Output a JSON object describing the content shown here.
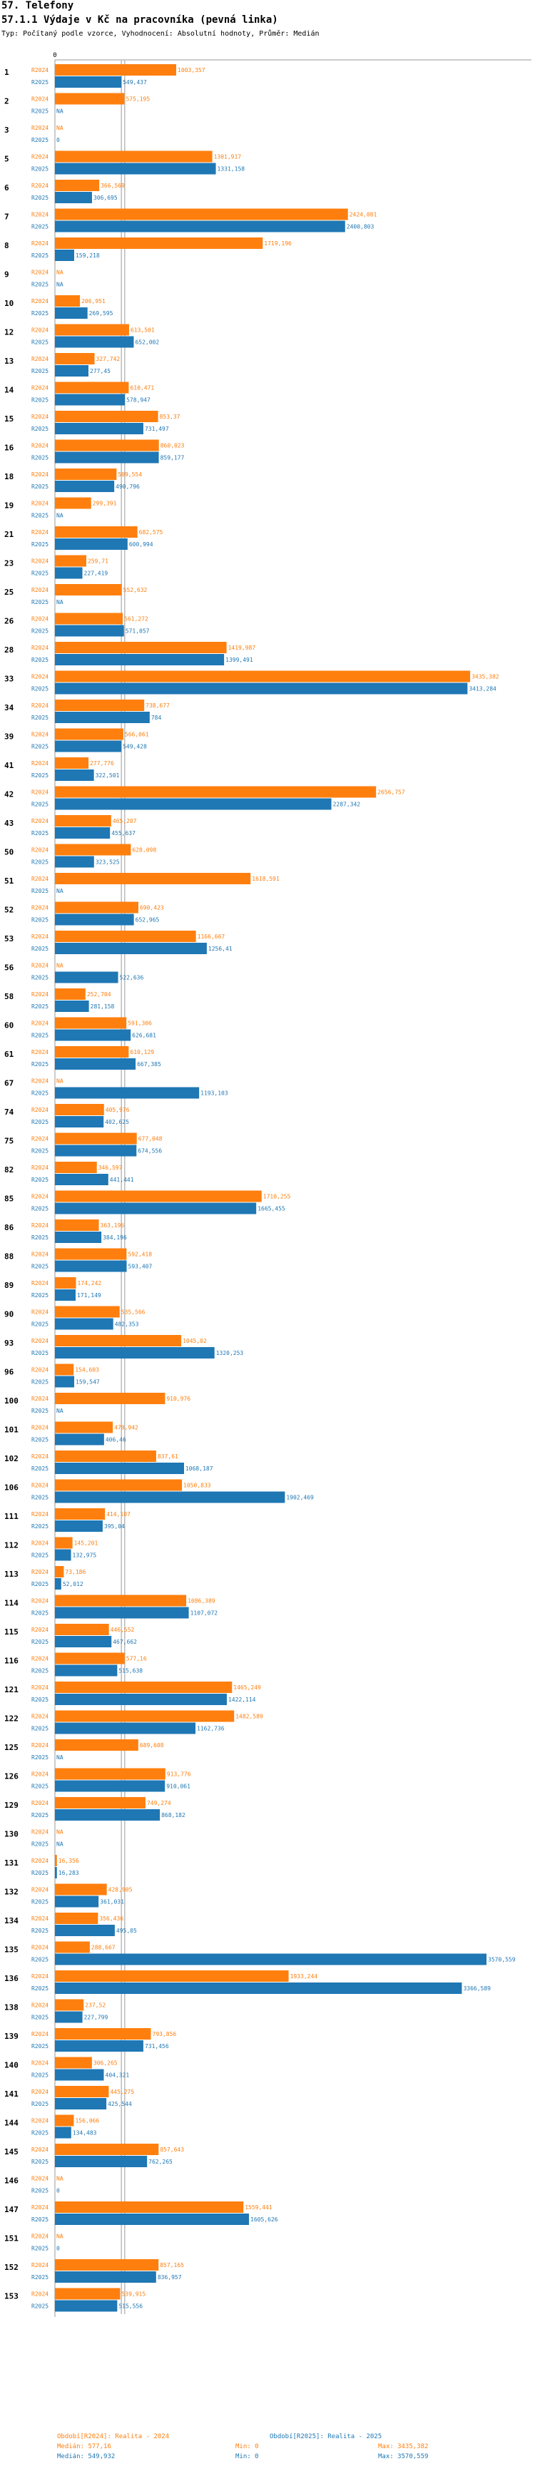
{
  "header": {
    "section": "57. Telefony",
    "title": "57.1.1 Výdaje v Kč na pracovníka (pevná linka)",
    "subtitle": "Typ: Počítaný podle vzorce, Vyhodnocení: Absolutní hodnoty, Průměr: Medián"
  },
  "colors": {
    "r2024": "#FF7F0E",
    "r2025": "#1F77B4",
    "median_line": "#BBBBBB"
  },
  "chart_data": {
    "type": "bar",
    "orientation": "horizontal",
    "xlim": [
      0,
      3570.559
    ],
    "axis_zero_label": "0",
    "series_labels": [
      "R2024",
      "R2025"
    ],
    "categories": [
      "1",
      "2",
      "3",
      "5",
      "6",
      "7",
      "8",
      "9",
      "10",
      "12",
      "13",
      "14",
      "15",
      "16",
      "18",
      "19",
      "21",
      "23",
      "25",
      "26",
      "28",
      "33",
      "34",
      "39",
      "41",
      "42",
      "43",
      "50",
      "51",
      "52",
      "53",
      "56",
      "58",
      "60",
      "61",
      "67",
      "74",
      "75",
      "82",
      "85",
      "86",
      "88",
      "89",
      "90",
      "93",
      "96",
      "100",
      "101",
      "102",
      "106",
      "111",
      "112",
      "113",
      "114",
      "115",
      "116",
      "121",
      "122",
      "125",
      "126",
      "129",
      "130",
      "131",
      "132",
      "134",
      "135",
      "136",
      "138",
      "139",
      "140",
      "141",
      "144",
      "145",
      "146",
      "147",
      "151",
      "152",
      "153"
    ],
    "series": [
      {
        "name": "R2024",
        "values": [
          1003.357,
          575.195,
          null,
          1301.917,
          366.569,
          2424.081,
          1719.196,
          null,
          206.951,
          613.501,
          327.742,
          610.471,
          853.37,
          860.023,
          509.554,
          299.391,
          682.575,
          259.71,
          552.632,
          561.272,
          1419.987,
          3435.382,
          738.677,
          566.061,
          277.776,
          2656.757,
          465.207,
          628.098,
          1618.591,
          690.423,
          1166.667,
          null,
          252.704,
          591.306,
          610.129,
          null,
          405.976,
          677.048,
          346.597,
          1710.255,
          363.196,
          592.418,
          174.242,
          535.566,
          1045.02,
          154.603,
          910.976,
          478.942,
          837.61,
          1050.833,
          414.107,
          145.201,
          73.186,
          1086.389,
          446.552,
          577.16,
          1465.249,
          1482.589,
          689.608,
          913.776,
          749.274,
          null,
          16.356,
          428.905,
          356.436,
          288.667,
          1933.244,
          237.52,
          793.856,
          306.265,
          445.275,
          156.066,
          857.643,
          null,
          1559.441,
          null,
          857.165,
          539.915
        ]
      },
      {
        "name": "R2025",
        "values": [
          549.437,
          null,
          0,
          1331.158,
          306.695,
          2400.803,
          159.218,
          null,
          269.595,
          652.002,
          277.45,
          578.947,
          731.497,
          859.177,
          490.796,
          null,
          600.994,
          227.419,
          null,
          571.057,
          1399.491,
          3413.284,
          784,
          549.428,
          322.501,
          2287.342,
          455.637,
          323.525,
          null,
          652.965,
          1256.41,
          522.636,
          281.158,
          626.681,
          667.385,
          1193.103,
          402.625,
          674.556,
          441.441,
          1665.455,
          384.196,
          593.407,
          171.149,
          482.353,
          1320.253,
          159.547,
          null,
          406.46,
          1068.187,
          1902.469,
          395.04,
          132.975,
          52.012,
          1107.072,
          467.662,
          515.638,
          1422.114,
          1162.736,
          null,
          910.061,
          868.182,
          null,
          16.283,
          361.031,
          495.05,
          3570.559,
          3366.589,
          227.799,
          731.456,
          404.321,
          425.544,
          134.483,
          762.265,
          0,
          1605.626,
          0,
          836.957,
          515.556
        ]
      }
    ],
    "medians": {
      "R2024": 577.16,
      "R2025": 549.932
    }
  },
  "legend": {
    "r2024_title": "Období[R2024]: Realita - 2024",
    "r2025_title": "Období[R2025]: Realita - 2025",
    "r2024_median": "Medián: 577,16",
    "r2025_median": "Medián: 549,932",
    "r2024_min": "Min: 0",
    "r2025_min": "Min: 0",
    "r2024_max": "Max: 3435,382",
    "r2025_max": "Max: 3570,559"
  }
}
